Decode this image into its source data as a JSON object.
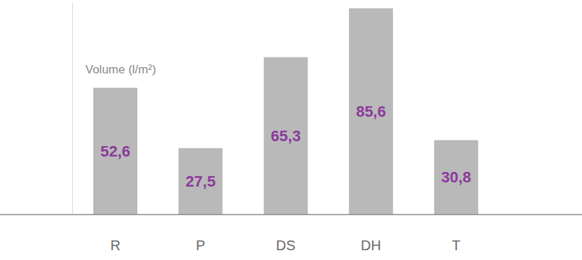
{
  "chart_data": {
    "type": "bar",
    "y_label": "Volume (l/m²)",
    "categories": [
      "R",
      "P",
      "DS",
      "DH",
      "T"
    ],
    "values": [
      52.6,
      27.5,
      65.3,
      85.6,
      30.8
    ],
    "value_labels": [
      "52,6",
      "27,5",
      "65,3",
      "85,6",
      "30,8"
    ],
    "color": "#b9b9b9",
    "ylim": [
      0,
      88
    ],
    "grid": false,
    "data_labels": true,
    "tick_labels": "x"
  }
}
